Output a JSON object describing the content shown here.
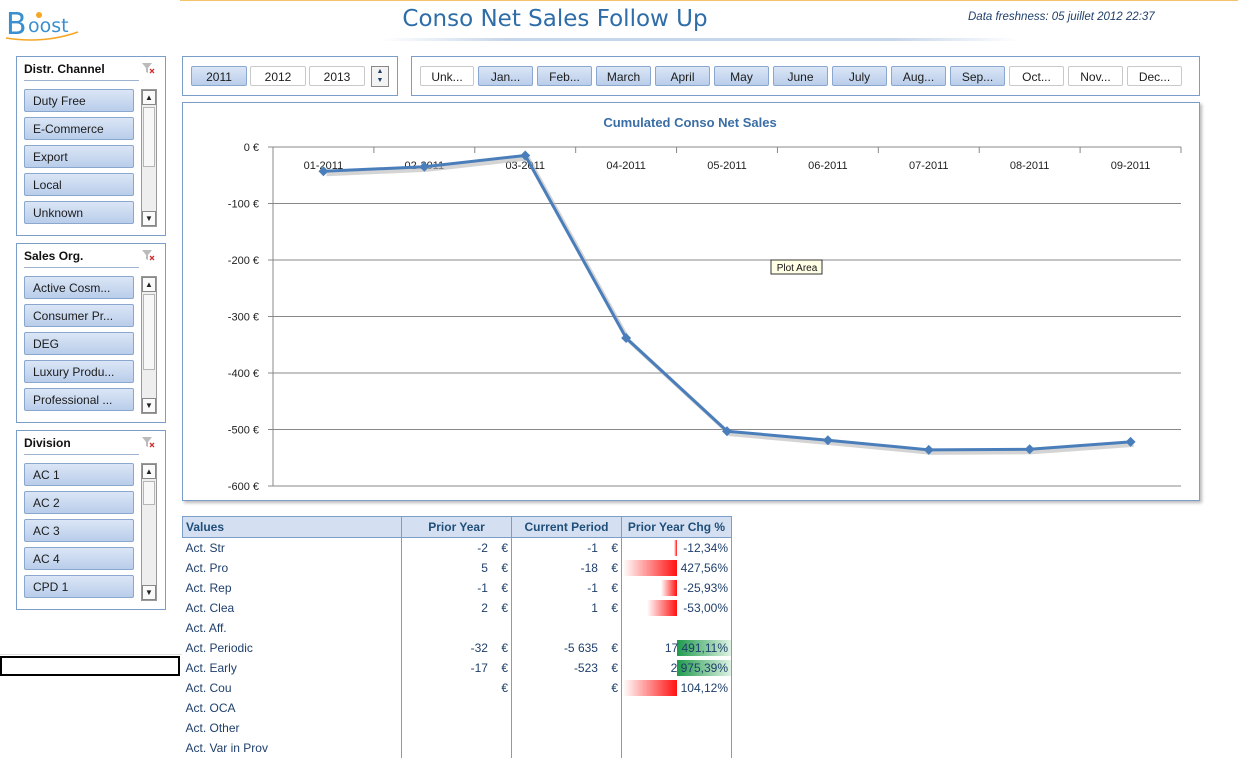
{
  "header": {
    "logo_text": "Boost",
    "title": "Conso Net Sales Follow Up",
    "freshness": "Data freshness: 05 juillet 2012 22:37"
  },
  "slicers": [
    {
      "title": "Distr. Channel",
      "items": [
        "Duty Free",
        "E-Commerce",
        "Export",
        "Local",
        "Unknown"
      ]
    },
    {
      "title": "Sales Org.",
      "items": [
        "Active Cosm...",
        "Consumer Pr...",
        "DEG",
        "Luxury Produ...",
        "Professional ..."
      ]
    },
    {
      "title": "Division",
      "items": [
        "AC 1",
        "AC 2",
        "AC 3",
        "AC 4",
        "CPD 1"
      ]
    }
  ],
  "years": [
    {
      "label": "2011",
      "selected": true
    },
    {
      "label": "2012",
      "selected": false
    },
    {
      "label": "2013",
      "selected": false
    }
  ],
  "months": [
    {
      "label": "Unk...",
      "selected": false
    },
    {
      "label": "Jan...",
      "selected": true
    },
    {
      "label": "Feb...",
      "selected": true
    },
    {
      "label": "March",
      "selected": true
    },
    {
      "label": "April",
      "selected": true
    },
    {
      "label": "May",
      "selected": true
    },
    {
      "label": "June",
      "selected": true
    },
    {
      "label": "July",
      "selected": true
    },
    {
      "label": "Aug...",
      "selected": true
    },
    {
      "label": "Sep...",
      "selected": true
    },
    {
      "label": "Oct...",
      "selected": false
    },
    {
      "label": "Nov...",
      "selected": false
    },
    {
      "label": "Dec...",
      "selected": false
    }
  ],
  "chart_data": {
    "type": "line",
    "title": "Cumulated Conso Net Sales",
    "categories": [
      "01-2011",
      "02-2011",
      "03-2011",
      "04-2011",
      "05-2011",
      "06-2011",
      "07-2011",
      "08-2011",
      "09-2011"
    ],
    "series": [
      {
        "values": [
          -43,
          -35,
          -15,
          -338,
          -503,
          -519,
          -536,
          -535,
          -522
        ]
      }
    ],
    "ylim": [
      -600,
      0
    ],
    "yticks": [
      "0 €",
      "-100 €",
      "-200 €",
      "-300 €",
      "-400 €",
      "-500 €",
      "-600 €"
    ],
    "ytick_values": [
      0,
      -100,
      -200,
      -300,
      -400,
      -500,
      -600
    ],
    "grid": true,
    "tooltip": "Plot Area",
    "line_color": "#4a7ebb"
  },
  "table": {
    "headers": [
      "Values",
      "Prior Year",
      "Current Period",
      "Prior Year Chg %"
    ],
    "rows": [
      {
        "label": "Act. Str",
        "prior": "-2",
        "prior_cur": "€",
        "current": "-1",
        "current_cur": "€",
        "chg": "-12,34%",
        "bar": -0.06
      },
      {
        "label": "Act. Pro",
        "prior": "5",
        "prior_cur": "€",
        "current": "-18",
        "current_cur": "€",
        "chg": "427,56%",
        "bar": -1.0
      },
      {
        "label": "Act. Rep",
        "prior": "-1",
        "prior_cur": "€",
        "current": "-1",
        "current_cur": "€",
        "chg": "-25,93%",
        "bar": -0.3
      },
      {
        "label": "Act. Clea",
        "prior": "2",
        "prior_cur": "€",
        "current": "1",
        "current_cur": "€",
        "chg": "-53,00%",
        "bar": -0.55
      },
      {
        "label": "Act. Aff.",
        "prior": "",
        "prior_cur": "",
        "current": "",
        "current_cur": "",
        "chg": "",
        "bar": 0
      },
      {
        "label": "Act. Periodic",
        "prior": "-32",
        "prior_cur": "€",
        "current": "-5 635",
        "current_cur": "€",
        "chg": "17 491,11%",
        "bar": 1.0
      },
      {
        "label": "Act. Early",
        "prior": "-17",
        "prior_cur": "€",
        "current": "-523",
        "current_cur": "€",
        "chg": "2 975,39%",
        "bar": 1.0
      },
      {
        "label": "Act. Cou",
        "prior": "",
        "prior_cur": "€",
        "current": "",
        "current_cur": "€",
        "chg": "104,12%",
        "bar": -1.0
      },
      {
        "label": "Act. OCA",
        "prior": "",
        "prior_cur": "",
        "current": "",
        "current_cur": "",
        "chg": "",
        "bar": 0
      },
      {
        "label": "Act. Other",
        "prior": "",
        "prior_cur": "",
        "current": "",
        "current_cur": "",
        "chg": "",
        "bar": 0
      },
      {
        "label": "Act. Var in Prov",
        "prior": "",
        "prior_cur": "",
        "current": "",
        "current_cur": "",
        "chg": "",
        "bar": 0
      }
    ]
  }
}
